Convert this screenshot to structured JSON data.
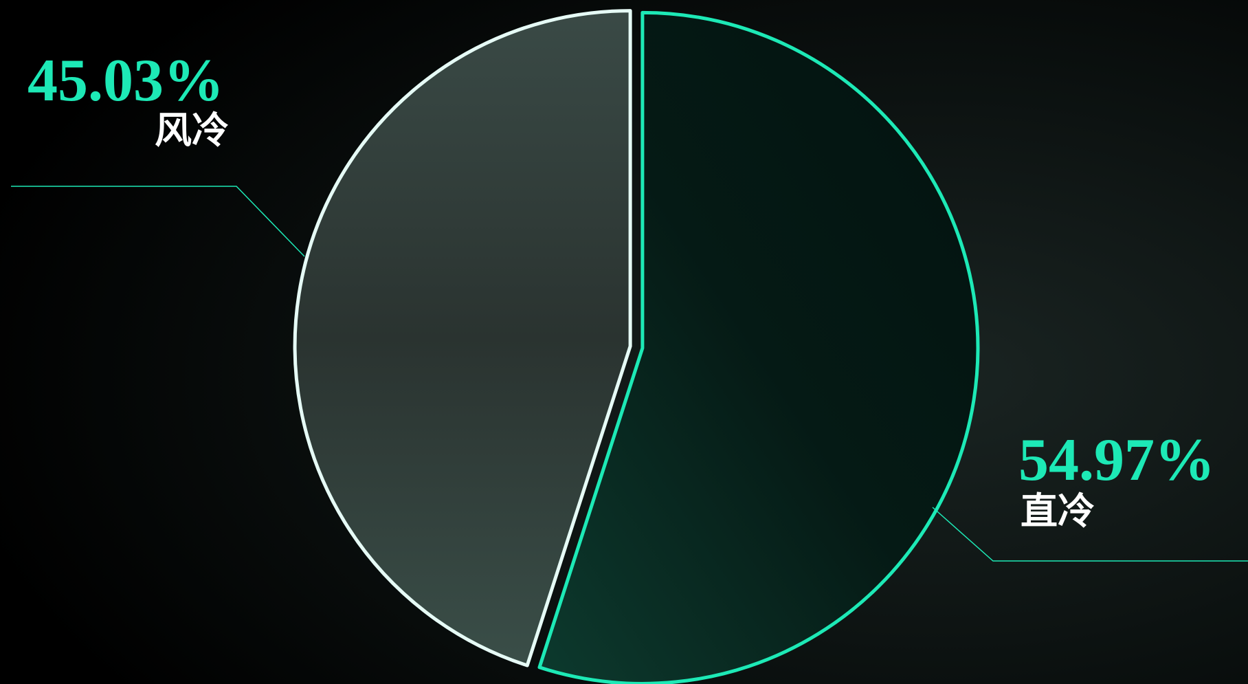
{
  "chart_data": {
    "type": "pie",
    "categories": [
      "直冷",
      "风冷"
    ],
    "values": [
      54.97,
      45.03
    ],
    "value_labels": [
      "54.97%",
      "45.03%"
    ],
    "colors": [
      "#1de9b6",
      "#e6fbf6"
    ]
  }
}
